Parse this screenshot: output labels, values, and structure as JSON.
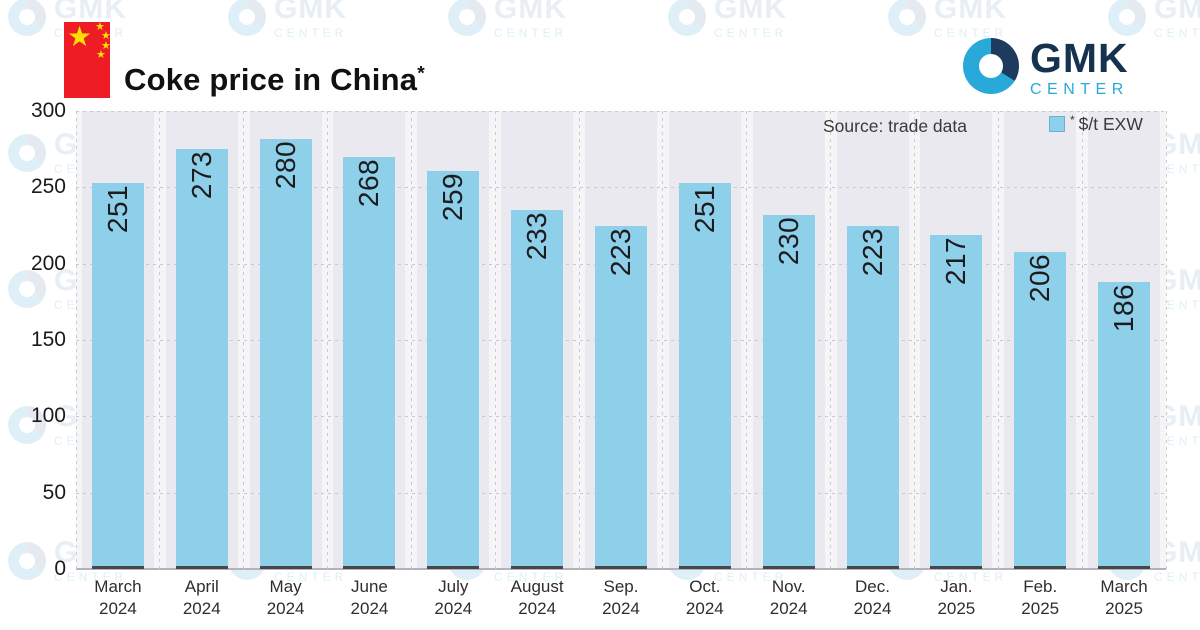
{
  "header": {
    "title": "Coke price in China",
    "asterisk": "*",
    "flag_icon": "china-flag",
    "flag_colors": {
      "field": "#ee1c25",
      "stars": "#ffde00"
    }
  },
  "logo": {
    "name": "GMK",
    "subname": "CENTER",
    "colors": {
      "navy": "#15324e",
      "cyan": "#29a9da"
    }
  },
  "chart_data": {
    "type": "bar",
    "title": "Coke price in China*",
    "categories": [
      [
        "March",
        "2024"
      ],
      [
        "April",
        "2024"
      ],
      [
        "May",
        "2024"
      ],
      [
        "June",
        "2024"
      ],
      [
        "July",
        "2024"
      ],
      [
        "August",
        "2024"
      ],
      [
        "Sep.",
        "2024"
      ],
      [
        "Oct.",
        "2024"
      ],
      [
        "Nov.",
        "2024"
      ],
      [
        "Dec.",
        "2024"
      ],
      [
        "Jan.",
        "2025"
      ],
      [
        "Feb.",
        "2025"
      ],
      [
        "March",
        "2025"
      ]
    ],
    "values": [
      251,
      273,
      280,
      268,
      259,
      233,
      223,
      251,
      230,
      223,
      217,
      206,
      186
    ],
    "unit": "$/t EXW",
    "xlabel": "",
    "ylabel": "",
    "ylim": [
      0,
      300
    ],
    "yticks": [
      300,
      250,
      200,
      150,
      100,
      50,
      0
    ],
    "grid": "dashed",
    "legend_position": "top-right",
    "bar_color": "#8ecfe9",
    "source": "Source: trade data",
    "legend": {
      "marker_note": "*",
      "label": "$/t EXW"
    }
  }
}
